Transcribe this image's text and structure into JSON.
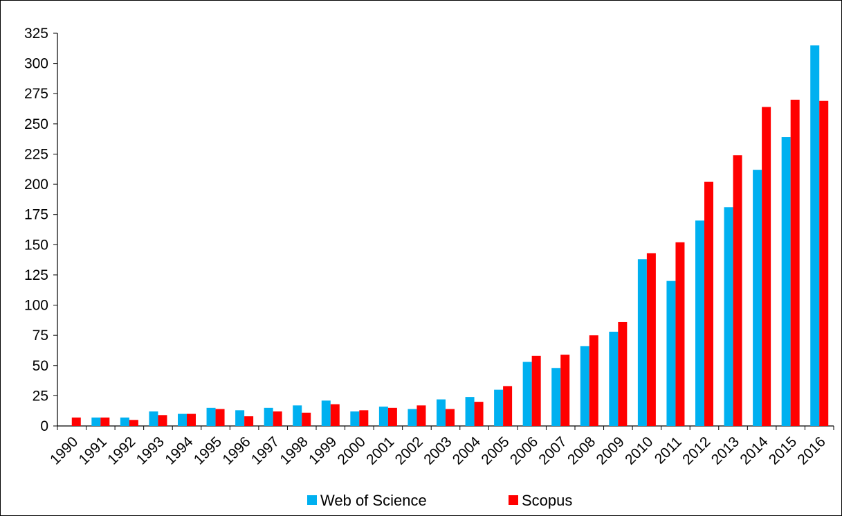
{
  "chart_data": {
    "type": "bar",
    "title": "",
    "xlabel": "",
    "ylabel": "",
    "ylim": [
      0,
      325
    ],
    "yticks": [
      0,
      25,
      50,
      75,
      100,
      125,
      150,
      175,
      200,
      225,
      250,
      275,
      300,
      325
    ],
    "grid": false,
    "legend_position": "bottom",
    "categories": [
      "1990",
      "1991",
      "1992",
      "1993",
      "1994",
      "1995",
      "1996",
      "1997",
      "1998",
      "1999",
      "2000",
      "2001",
      "2002",
      "2003",
      "2004",
      "2005",
      "2006",
      "2007",
      "2008",
      "2009",
      "2010",
      "2011",
      "2012",
      "2013",
      "2014",
      "2015",
      "2016"
    ],
    "series": [
      {
        "name": "Web of Science",
        "color": "#00B0F0",
        "values": [
          0,
          7,
          7,
          12,
          10,
          15,
          13,
          15,
          17,
          21,
          12,
          16,
          14,
          22,
          24,
          30,
          53,
          48,
          66,
          78,
          138,
          120,
          170,
          181,
          212,
          239,
          315
        ]
      },
      {
        "name": "Scopus",
        "color": "#FF0000",
        "values": [
          7,
          7,
          5,
          9,
          10,
          14,
          8,
          12,
          11,
          18,
          13,
          15,
          17,
          14,
          20,
          33,
          58,
          59,
          75,
          86,
          143,
          152,
          202,
          224,
          264,
          270,
          269
        ]
      }
    ]
  }
}
